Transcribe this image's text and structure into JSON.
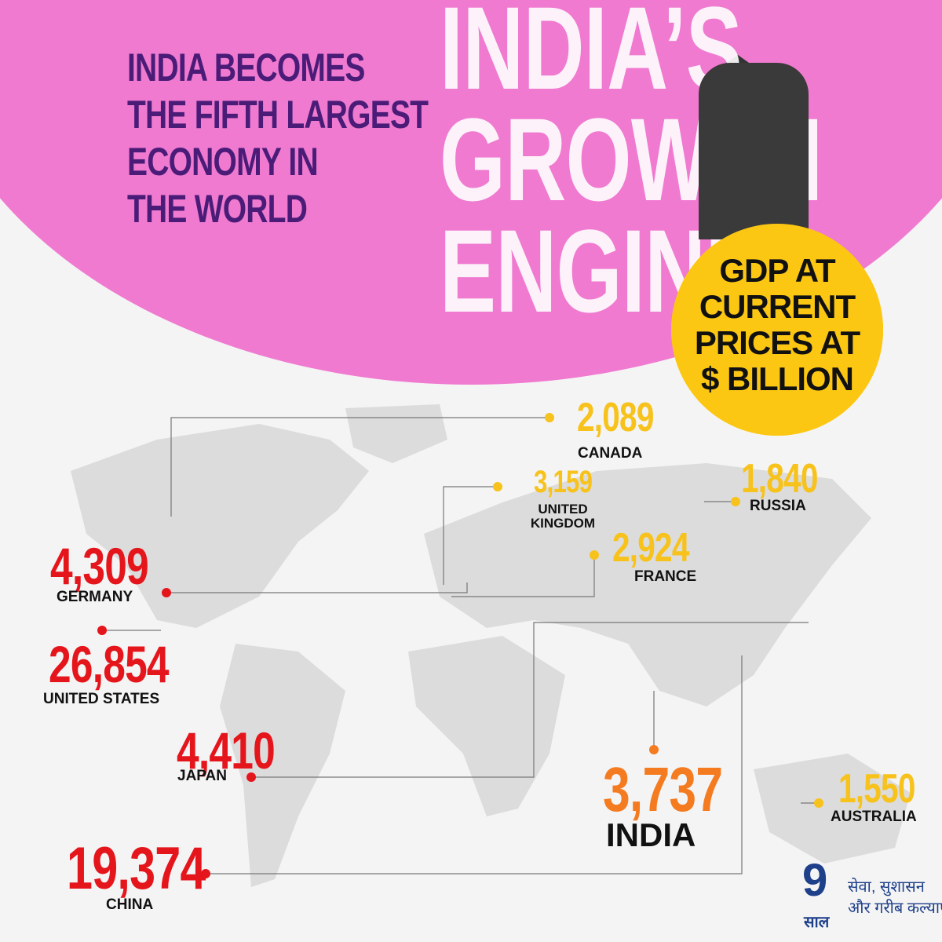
{
  "header": {
    "title_lines": [
      "INDIA BECOMES",
      "THE FIFTH LARGEST",
      "ECONOMY IN",
      "THE WORLD"
    ],
    "backdrop_lines": [
      "INDIA’S",
      "GROWTH",
      "ENGINE"
    ]
  },
  "badge": {
    "lines": [
      "GDP AT",
      "CURRENT",
      "PRICES AT",
      "$ BILLION"
    ]
  },
  "countries": [
    {
      "name": "CANADA",
      "value": "2,089"
    },
    {
      "name": "UNITED KINGDOM",
      "value": "3,159"
    },
    {
      "name": "RUSSIA",
      "value": "1,840"
    },
    {
      "name": "FRANCE",
      "value": "2,924"
    },
    {
      "name": "GERMANY",
      "value": "4,309"
    },
    {
      "name": "UNITED STATES",
      "value": "26,854"
    },
    {
      "name": "JAPAN",
      "value": "4,410"
    },
    {
      "name": "INDIA",
      "value": "3,737"
    },
    {
      "name": "AUSTRALIA",
      "value": "1,550"
    },
    {
      "name": "CHINA",
      "value": "19,374"
    }
  ],
  "logo": {
    "numeral": "9",
    "word": "साल",
    "line1": "सेवा, सुशासन",
    "line2": "और गरीब कल्याण"
  }
}
